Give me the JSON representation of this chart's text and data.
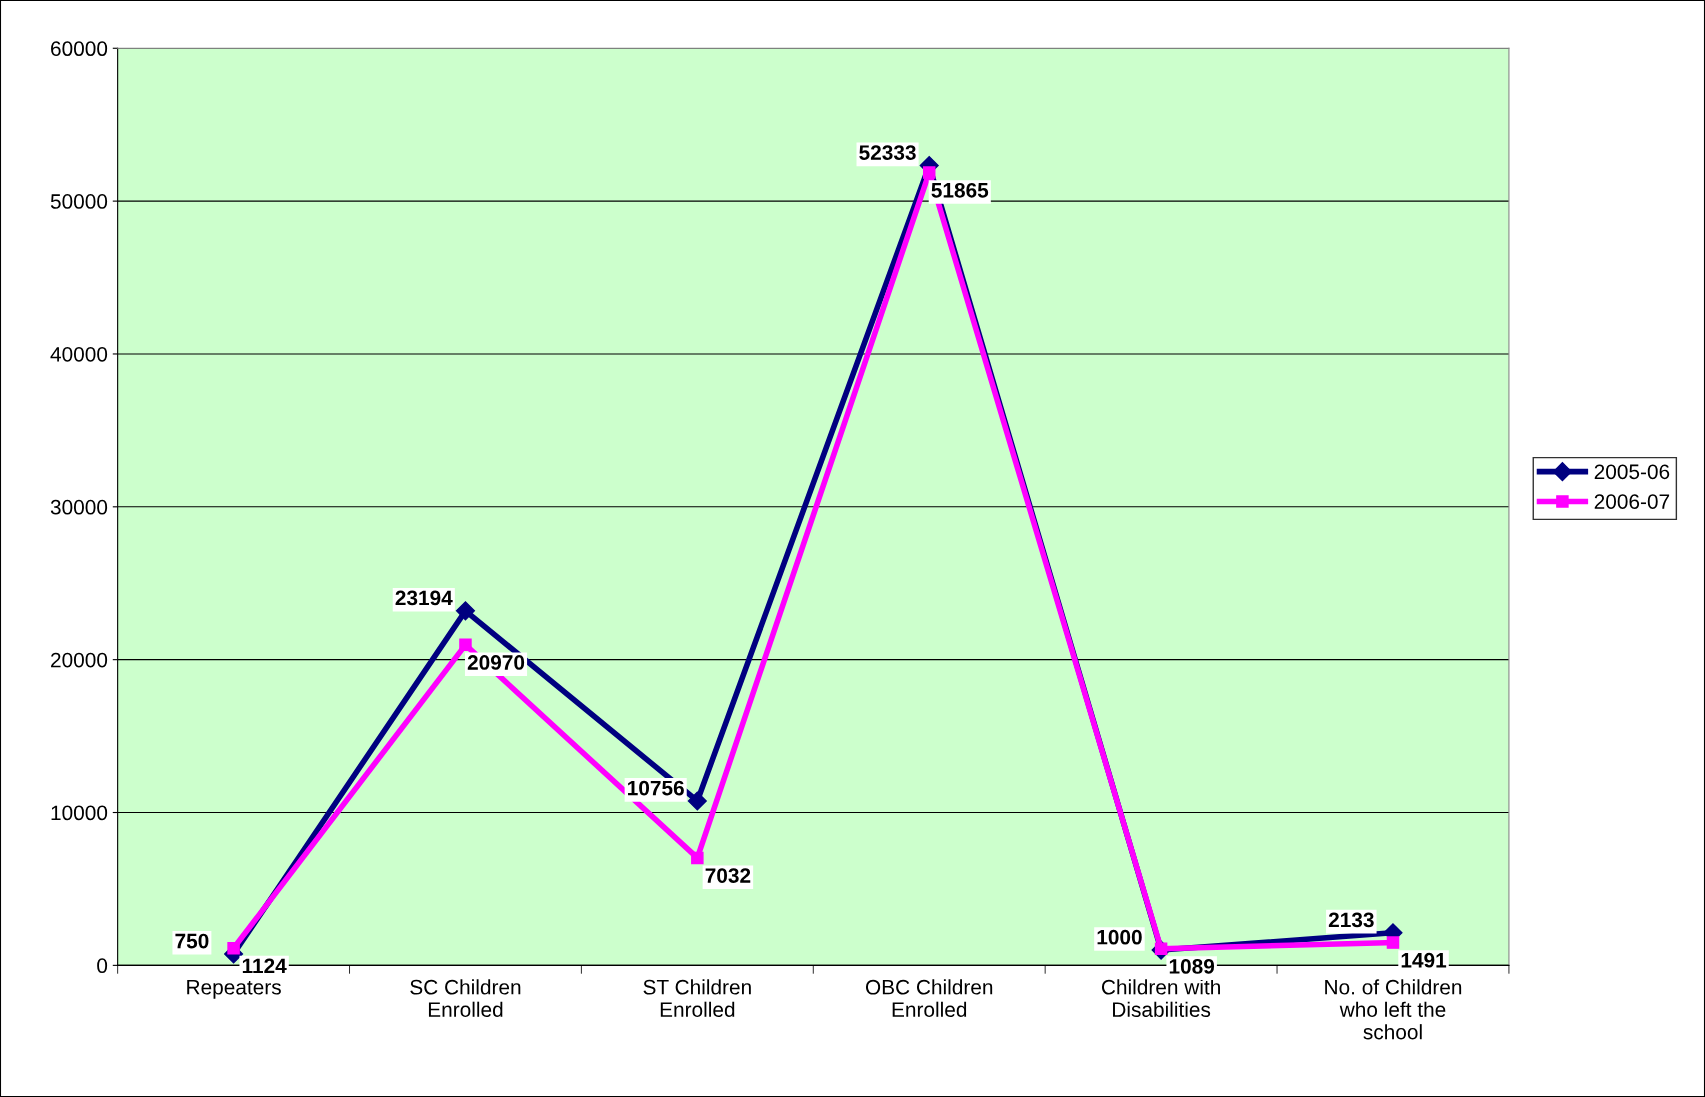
{
  "chart_data": {
    "type": "line",
    "categories": [
      "Repeaters",
      "SC Children\nEnrolled",
      "ST Children\nEnrolled",
      "OBC Children\nEnrolled",
      "Children with\nDisabilities",
      "No. of Children\nwho left the\nschool"
    ],
    "series": [
      {
        "name": "2005-06",
        "color": "#000080",
        "marker": "diamond",
        "values": [
          750,
          23194,
          10756,
          52333,
          1000,
          2133
        ]
      },
      {
        "name": "2006-07",
        "color": "#ff00ff",
        "marker": "square",
        "values": [
          1124,
          20970,
          7032,
          51865,
          1089,
          1491
        ]
      }
    ],
    "ylim": [
      0,
      60000
    ],
    "yticks": [
      0,
      10000,
      20000,
      30000,
      40000,
      50000,
      60000
    ],
    "grid": "y",
    "legend": "right",
    "data_labels": true
  }
}
